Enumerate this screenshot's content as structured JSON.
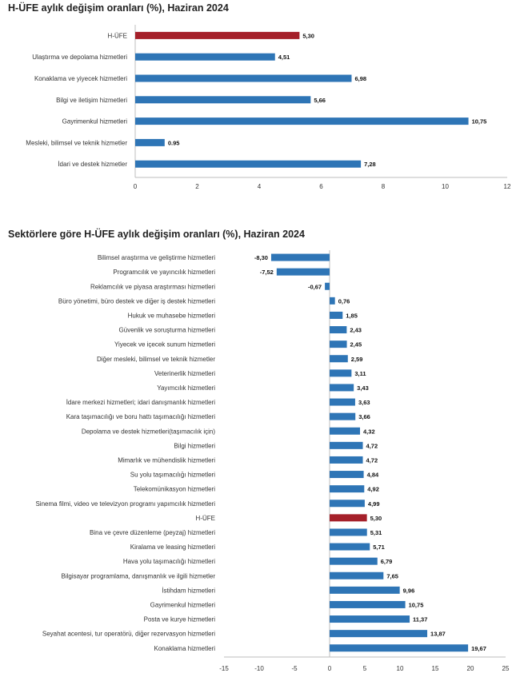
{
  "colors": {
    "bar": "#2e75b6",
    "highlight": "#a5202a",
    "axis": "#bdbdbd"
  },
  "chart_data": [
    {
      "type": "bar",
      "orientation": "horizontal",
      "title": "H-ÜFE aylık değişim oranları (%), Haziran 2024",
      "categories": [
        "H-ÜFE",
        "Ulaştırma ve depolama hizmetleri",
        "Konaklama ve yiyecek hizmetleri",
        "Bilgi ve iletişim hizmetleri",
        "Gayrimenkul hizmetleri",
        "Mesleki, bilimsel ve teknik hizmetler",
        "İdari ve destek hizmetler"
      ],
      "values": [
        5.3,
        4.51,
        6.98,
        5.66,
        10.75,
        0.95,
        7.28
      ],
      "value_labels": [
        "5,30",
        "4,51",
        "6,98",
        "5,66",
        "10,75",
        "0.95",
        "7,28"
      ],
      "highlight": "H-ÜFE",
      "xlim": [
        0,
        12
      ],
      "xticks": [
        0,
        2,
        4,
        6,
        8,
        10,
        12
      ],
      "xtick_labels": [
        "0",
        "2",
        "4",
        "6",
        "8",
        "10",
        "12"
      ],
      "xlabel": "",
      "ylabel": "",
      "legend": "none",
      "grid": false
    },
    {
      "type": "bar",
      "orientation": "horizontal",
      "title": "Sektörlere göre H-ÜFE aylık değişim oranları (%), Haziran 2024",
      "categories": [
        "Bilimsel araştırma ve geliştirme hizmetleri",
        "Programcılık ve yayıncılık hizmetleri",
        "Reklamcılık ve piyasa araştırması hizmetleri",
        "Büro yönetimi, büro destek ve diğer iş destek hizmetleri",
        "Hukuk ve muhasebe hizmetleri",
        "Güvenlik ve soruşturma hizmetleri",
        "Yiyecek ve içecek sunum hizmetleri",
        "Diğer mesleki, bilimsel ve teknik hizmetler",
        "Veterinerlik hizmetleri",
        "Yayımcılık hizmetleri",
        "İdare merkezi hizmetleri; idari danışmanlık hizmetleri",
        "Kara taşımacılığı ve boru hattı taşımacılığı hizmetleri",
        "Depolama ve destek hizmetleri(taşımacılık için)",
        "Bilgi hizmetleri",
        "Mimarlık ve mühendislik hizmetleri",
        "Su yolu taşımacılığı hizmetleri",
        "Telekomünikasyon hizmetleri",
        "Sinema filmi, video ve televizyon programı yapımcılık hizmetleri",
        "H-ÜFE",
        "Bina ve çevre düzenleme (peyzaj) hizmetleri",
        "Kiralama ve leasing hizmetleri",
        "Hava yolu taşımacılığı hizmetleri",
        "Bilgisayar programlama, danışmanlık ve ilgili hizmetler",
        "İstihdam hizmetleri",
        "Gayrimenkul hizmetleri",
        "Posta ve kurye hizmetleri",
        "Seyahat acentesi, tur operatörü, diğer rezervasyon hizmetleri",
        "Konaklama hizmetleri"
      ],
      "values": [
        -8.3,
        -7.52,
        -0.67,
        0.76,
        1.85,
        2.43,
        2.45,
        2.59,
        3.11,
        3.43,
        3.63,
        3.66,
        4.32,
        4.72,
        4.72,
        4.84,
        4.92,
        4.99,
        5.3,
        5.31,
        5.71,
        6.79,
        7.65,
        9.96,
        10.75,
        11.37,
        13.87,
        19.67
      ],
      "value_labels": [
        "-8,30",
        "-7,52",
        "-0,67",
        "0,76",
        "1,85",
        "2,43",
        "2,45",
        "2,59",
        "3,11",
        "3,43",
        "3,63",
        "3,66",
        "4,32",
        "4,72",
        "4,72",
        "4,84",
        "4,92",
        "4,99",
        "5,30",
        "5,31",
        "5,71",
        "6,79",
        "7,65",
        "9,96",
        "10,75",
        "11,37",
        "13,87",
        "19,67"
      ],
      "highlight": "H-ÜFE",
      "xlim": [
        -15,
        25
      ],
      "xticks": [
        -15,
        -10,
        -5,
        0,
        5,
        10,
        15,
        20,
        25
      ],
      "xtick_labels": [
        "-15",
        "-10",
        "-5",
        "0",
        "5",
        "10",
        "15",
        "20",
        "25"
      ],
      "xlabel": "",
      "ylabel": "",
      "legend": "none",
      "grid": false
    }
  ]
}
